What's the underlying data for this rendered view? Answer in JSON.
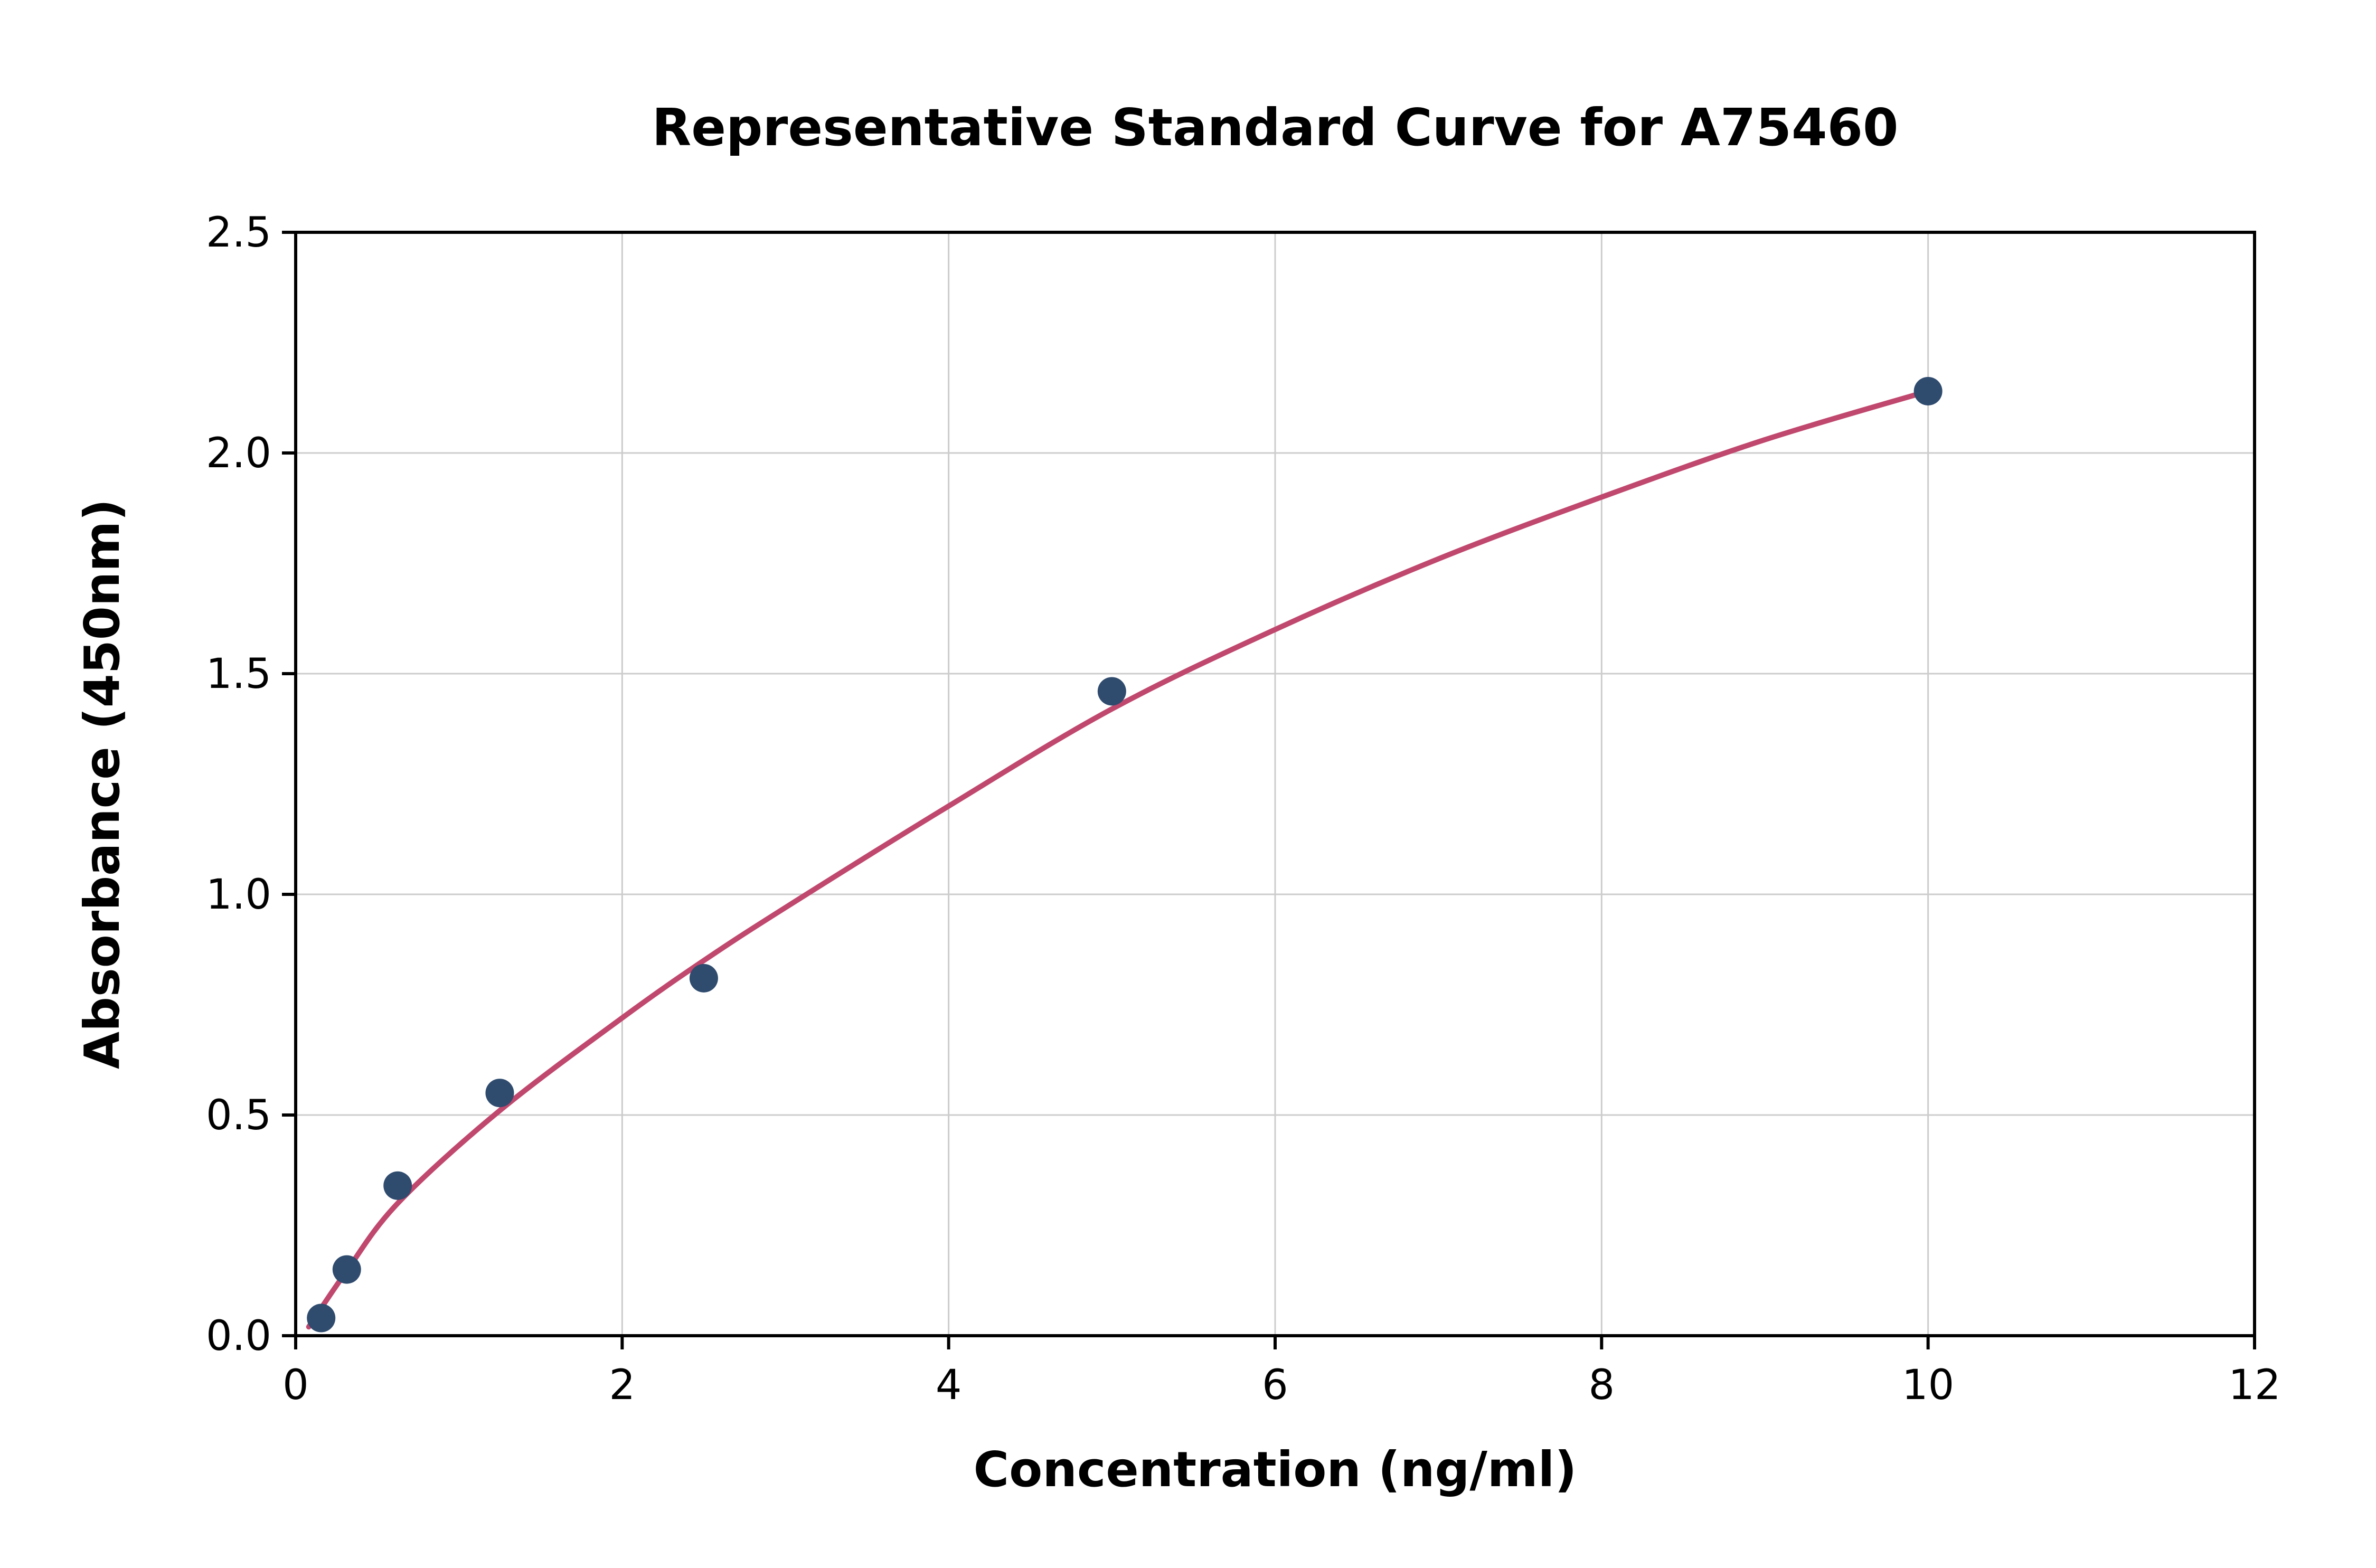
{
  "chart_data": {
    "type": "scatter",
    "title": "Representative Standard Curve for A75460",
    "xlabel": "Concentration (ng/ml)",
    "ylabel": "Absorbance (450nm)",
    "xlim": [
      0,
      12
    ],
    "ylim": [
      0,
      2.5
    ],
    "grid": true,
    "legend": "none",
    "x_ticks": [
      {
        "v": 0,
        "label": "0"
      },
      {
        "v": 2,
        "label": "2"
      },
      {
        "v": 4,
        "label": "4"
      },
      {
        "v": 6,
        "label": "6"
      },
      {
        "v": 8,
        "label": "8"
      },
      {
        "v": 10,
        "label": "10"
      },
      {
        "v": 12,
        "label": "12"
      }
    ],
    "y_ticks": [
      {
        "v": 0.0,
        "label": "0.0"
      },
      {
        "v": 0.5,
        "label": "0.5"
      },
      {
        "v": 1.0,
        "label": "1.0"
      },
      {
        "v": 1.5,
        "label": "1.5"
      },
      {
        "v": 2.0,
        "label": "2.0"
      },
      {
        "v": 2.5,
        "label": "2.5"
      }
    ],
    "points": [
      {
        "x": 0.156,
        "y": 0.04
      },
      {
        "x": 0.313,
        "y": 0.15
      },
      {
        "x": 0.625,
        "y": 0.34
      },
      {
        "x": 1.25,
        "y": 0.55
      },
      {
        "x": 2.5,
        "y": 0.81
      },
      {
        "x": 5.0,
        "y": 1.46
      },
      {
        "x": 10.0,
        "y": 2.14
      }
    ],
    "curve_points": [
      [
        0.08,
        0.02
      ],
      [
        0.3,
        0.14
      ],
      [
        0.625,
        0.3
      ],
      [
        1.25,
        0.51
      ],
      [
        2.0,
        0.72
      ],
      [
        2.5,
        0.85
      ],
      [
        3.0,
        0.97
      ],
      [
        4.0,
        1.2
      ],
      [
        5.0,
        1.42
      ],
      [
        6.0,
        1.6
      ],
      [
        7.0,
        1.76
      ],
      [
        8.0,
        1.9
      ],
      [
        9.0,
        2.03
      ],
      [
        10.0,
        2.14
      ]
    ],
    "colors": {
      "point": "#2f4b6e",
      "curve": "#c0486e",
      "grid": "#cccccc",
      "axis": "#000000",
      "background": "#ffffff"
    }
  }
}
